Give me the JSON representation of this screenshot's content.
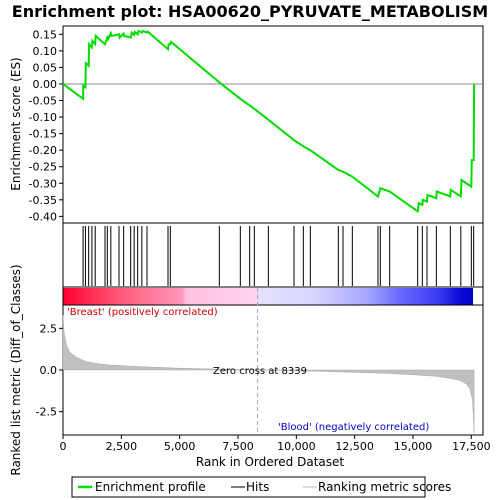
{
  "chart_data": {
    "type": "line",
    "title": "Enrichment plot: HSA00620_PYRUVATE_METABOLISM",
    "top_panel": {
      "ylabel": "Enrichment score (ES)",
      "ylim": [
        -0.42,
        0.175
      ],
      "yticks": [
        "0.15",
        "0.10",
        "0.05",
        "0.00",
        "-0.05",
        "-0.10",
        "-0.15",
        "-0.20",
        "-0.25",
        "-0.30",
        "-0.35",
        "-0.40"
      ],
      "ytick_values": [
        0.15,
        0.1,
        0.05,
        0.0,
        -0.05,
        -0.1,
        -0.15,
        -0.2,
        -0.25,
        -0.3,
        -0.35,
        -0.4
      ],
      "series": [
        {
          "name": "Enrichment profile",
          "color": "#00dd00",
          "x": [
            0,
            860,
            870,
            960,
            980,
            1100,
            1120,
            1240,
            1260,
            1380,
            1400,
            1800,
            1900,
            1930,
            2050,
            2080,
            2400,
            2430,
            2600,
            2620,
            2900,
            2950,
            3050,
            3080,
            3200,
            3230,
            3380,
            3410,
            3600,
            3630,
            4500,
            4530,
            4600,
            4630,
            6700,
            7600,
            8000,
            8200,
            8800,
            9900,
            10300,
            10600,
            11800,
            12000,
            12400,
            13500,
            13600,
            14000,
            15200,
            15250,
            15400,
            15420,
            15600,
            15620,
            16000,
            16020,
            16600,
            16620,
            17050,
            17080,
            17500,
            17520,
            17600,
            17620
          ],
          "y": [
            0.0,
            -0.045,
            -0.005,
            -0.01,
            0.063,
            0.055,
            0.12,
            0.11,
            0.13,
            0.12,
            0.145,
            0.12,
            0.14,
            0.135,
            0.153,
            0.145,
            0.15,
            0.14,
            0.152,
            0.145,
            0.14,
            0.155,
            0.148,
            0.157,
            0.15,
            0.16,
            0.155,
            0.16,
            0.155,
            0.158,
            0.105,
            0.12,
            0.12,
            0.127,
            0.005,
            -0.045,
            -0.065,
            -0.075,
            -0.108,
            -0.17,
            -0.188,
            -0.2,
            -0.26,
            -0.265,
            -0.28,
            -0.34,
            -0.315,
            -0.325,
            -0.385,
            -0.36,
            -0.365,
            -0.35,
            -0.355,
            -0.335,
            -0.345,
            -0.325,
            -0.34,
            -0.32,
            -0.34,
            -0.29,
            -0.31,
            -0.23,
            -0.23,
            0.0
          ]
        }
      ]
    },
    "hits": {
      "name": "Hits",
      "positions": [
        860,
        960,
        1100,
        1240,
        1380,
        1800,
        1900,
        2050,
        2400,
        2600,
        2900,
        3050,
        3200,
        3380,
        3600,
        4500,
        4600,
        6700,
        7600,
        8000,
        8200,
        8800,
        9900,
        10300,
        10600,
        11800,
        12000,
        12400,
        13500,
        13600,
        14000,
        15200,
        15400,
        15600,
        16000,
        16600,
        17050,
        17500,
        17600
      ]
    },
    "bottom_panel": {
      "ylabel": "Ranked list metric (Diff_of_Classes)",
      "xlabel": "Rank in Ordered Dataset",
      "ylim": [
        -3.9,
        3.9
      ],
      "yticks": [
        "2.5",
        "0.0",
        "-2.5"
      ],
      "ytick_values": [
        2.5,
        0.0,
        -2.5
      ],
      "xlim": [
        0,
        18000
      ],
      "xticks": [
        "0",
        "2,500",
        "5,000",
        "7,500",
        "10,000",
        "12,500",
        "15,000",
        "17,500"
      ],
      "xtick_values": [
        0,
        2500,
        5000,
        7500,
        10000,
        12500,
        15000,
        17500
      ],
      "metric_profile": {
        "name": "Ranking metric scores",
        "x": [
          0,
          50,
          150,
          300,
          600,
          1000,
          1500,
          2000,
          3000,
          4000,
          5000,
          6000,
          7000,
          8000,
          8339,
          9000,
          10000,
          11000,
          12000,
          13000,
          14000,
          15000,
          16000,
          16500,
          17000,
          17300,
          17450,
          17550,
          17620
        ],
        "y": [
          3.3,
          2.2,
          1.5,
          1.05,
          0.75,
          0.5,
          0.38,
          0.3,
          0.22,
          0.16,
          0.11,
          0.07,
          0.04,
          0.01,
          0.0,
          -0.02,
          -0.05,
          -0.08,
          -0.12,
          -0.16,
          -0.21,
          -0.28,
          -0.38,
          -0.48,
          -0.62,
          -0.85,
          -1.2,
          -1.8,
          -3.8
        ]
      },
      "zero_cross_label": "Zero cross at 8339",
      "zero_cross": 8339,
      "pos_label": "'Breast' (positively correlated)",
      "neg_label": "'Blood' (negatively correlated)"
    },
    "legend": [
      {
        "label": "Enrichment profile",
        "color": "#00dd00"
      },
      {
        "label": "Hits",
        "color": "#000000"
      },
      {
        "label": "Ranking metric scores",
        "color": "#bbbbbb"
      }
    ],
    "legend_position": "bottom",
    "grid": false,
    "n_genes": 17620
  }
}
